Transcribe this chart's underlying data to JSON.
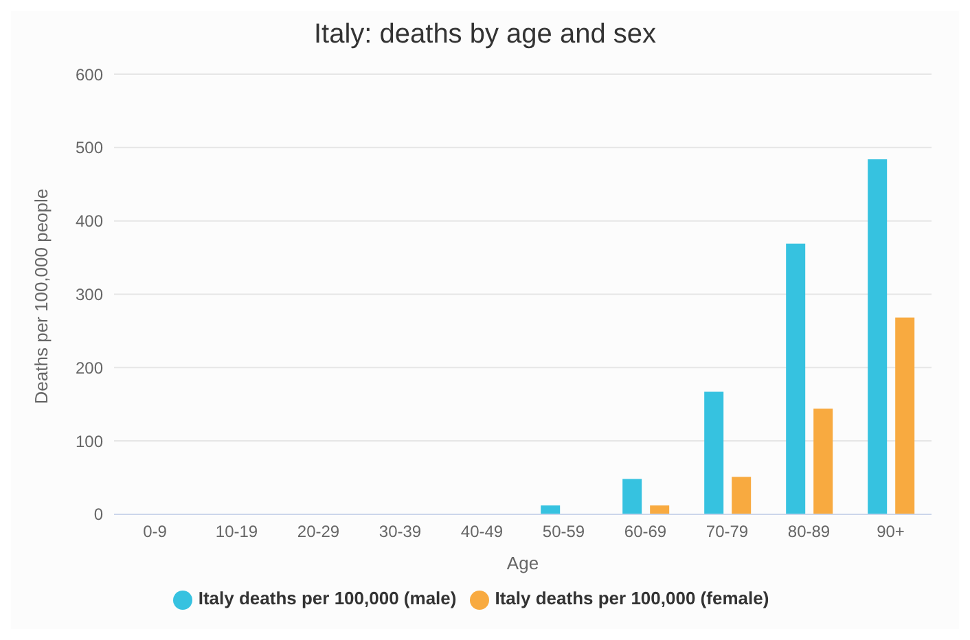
{
  "chart_data": {
    "type": "bar",
    "title": "Italy: deaths by age and sex",
    "xlabel": "Age",
    "ylabel": "Deaths per 100,000 people",
    "categories": [
      "0-9",
      "10-19",
      "20-29",
      "30-39",
      "40-49",
      "50-59",
      "60-69",
      "70-79",
      "80-89",
      "90+"
    ],
    "series": [
      {
        "name": "Italy deaths per 100,000 (male)",
        "color": "#36c2e0",
        "values": [
          0,
          0,
          0,
          0,
          0,
          12,
          48,
          167,
          369,
          484
        ]
      },
      {
        "name": "Italy deaths per 100,000 (female)",
        "color": "#f8aa40",
        "values": [
          0,
          0,
          0,
          0,
          0,
          0,
          12,
          51,
          144,
          268
        ]
      }
    ],
    "ylim": [
      0,
      600
    ],
    "yticks": [
      0,
      100,
      200,
      300,
      400,
      500,
      600
    ],
    "grid": "y",
    "legend": "bottom"
  }
}
